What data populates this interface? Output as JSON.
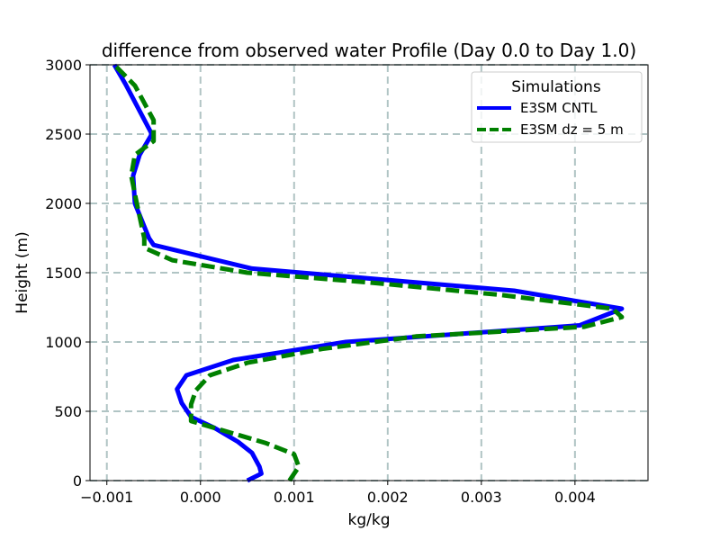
{
  "chart_data": {
    "type": "line",
    "title": "difference from observed water Profile (Day 0.0 to Day 1.0)",
    "xlabel": "kg/kg",
    "ylabel": "Height (m)",
    "xlim": [
      -0.00118,
      0.00478
    ],
    "ylim": [
      0,
      3000
    ],
    "xticks": [
      -0.001,
      0.0,
      0.001,
      0.002,
      0.003,
      0.004
    ],
    "xtick_labels": [
      "−0.001",
      "0.000",
      "0.001",
      "0.002",
      "0.003",
      "0.004"
    ],
    "yticks": [
      0,
      500,
      1000,
      1500,
      2000,
      2500,
      3000
    ],
    "ytick_labels": [
      "0",
      "500",
      "1000",
      "1500",
      "2000",
      "2500",
      "3000"
    ],
    "grid": true,
    "legend": {
      "title": "Simulations",
      "position": "top-right"
    },
    "series": [
      {
        "name": "E3SM CNTL",
        "color": "#0000ff",
        "style": "solid",
        "points": [
          [
            0.0005,
            0
          ],
          [
            0.00065,
            50
          ],
          [
            0.00063,
            100
          ],
          [
            0.00055,
            200
          ],
          [
            0.0004,
            280
          ],
          [
            0.00015,
            380
          ],
          [
            -0.0001,
            460
          ],
          [
            -0.0002,
            560
          ],
          [
            -0.00025,
            660
          ],
          [
            -0.00015,
            760
          ],
          [
            0.00035,
            870
          ],
          [
            0.00155,
            1000
          ],
          [
            0.00405,
            1120
          ],
          [
            0.0045,
            1240
          ],
          [
            0.00335,
            1370
          ],
          [
            0.00055,
            1530
          ],
          [
            -0.0005,
            1700
          ],
          [
            -0.00055,
            1750
          ],
          [
            -0.0007,
            2000
          ],
          [
            -0.00072,
            2200
          ],
          [
            -0.00065,
            2350
          ],
          [
            -0.00052,
            2500
          ],
          [
            -0.0008,
            2860
          ],
          [
            -0.00092,
            3000
          ]
        ]
      },
      {
        "name": "E3SM dz = 5 m",
        "color": "#008000",
        "style": "dashed",
        "points": [
          [
            0.00095,
            0
          ],
          [
            0.00105,
            100
          ],
          [
            0.001,
            190
          ],
          [
            0.0007,
            270
          ],
          [
            0.0003,
            350
          ],
          [
            -0.0001,
            430
          ],
          [
            -0.0001,
            550
          ],
          [
            -5e-05,
            650
          ],
          [
            0.0001,
            760
          ],
          [
            0.0005,
            850
          ],
          [
            0.0013,
            950
          ],
          [
            0.0023,
            1040
          ],
          [
            0.0041,
            1110
          ],
          [
            0.0045,
            1180
          ],
          [
            0.0044,
            1240
          ],
          [
            0.0032,
            1340
          ],
          [
            0.0018,
            1430
          ],
          [
            0.0005,
            1500
          ],
          [
            -0.0003,
            1590
          ],
          [
            -0.0006,
            1680
          ],
          [
            -0.0006,
            1750
          ],
          [
            -0.00068,
            2000
          ],
          [
            -0.00074,
            2200
          ],
          [
            -0.0007,
            2350
          ],
          [
            -0.0005,
            2450
          ],
          [
            -0.0005,
            2600
          ],
          [
            -0.0007,
            2850
          ],
          [
            -0.00092,
            3000
          ]
        ]
      }
    ]
  }
}
